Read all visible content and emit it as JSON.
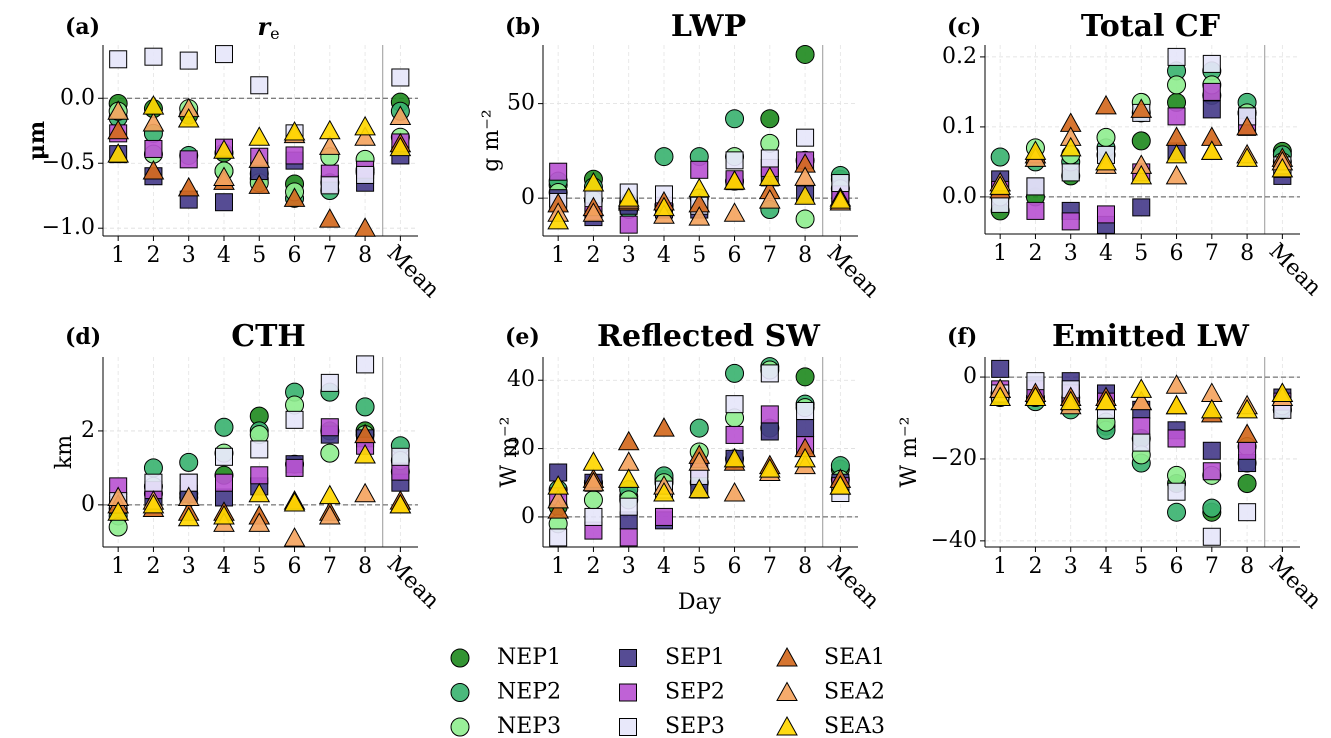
{
  "legend": [
    {
      "name": "NEP1",
      "color": "#228b22",
      "marker": "circle"
    },
    {
      "name": "NEP2",
      "color": "#3cb371",
      "marker": "circle"
    },
    {
      "name": "NEP3",
      "color": "#90ee90",
      "marker": "circle"
    },
    {
      "name": "SEP1",
      "color": "#483d8b",
      "marker": "square"
    },
    {
      "name": "SEP2",
      "color": "#ba55d3",
      "marker": "square"
    },
    {
      "name": "SEP3",
      "color": "#e6e6fa",
      "marker": "square"
    },
    {
      "name": "SEA1",
      "color": "#d2691e",
      "marker": "triangle"
    },
    {
      "name": "SEA2",
      "color": "#f4a460",
      "marker": "triangle"
    },
    {
      "name": "SEA3",
      "color": "#ffd700",
      "marker": "triangle"
    }
  ],
  "chart_data": [
    {
      "type": "scatter",
      "label": "(a)",
      "title": "r",
      "title_subscript": "e",
      "ylabel": "μm",
      "categories": [
        "1",
        "2",
        "3",
        "4",
        "5",
        "6",
        "7",
        "8",
        "Mean"
      ],
      "ylim": [
        -1.06,
        0.41
      ],
      "yticks": [
        {
          "value": -1.0,
          "label": "−1.0"
        },
        {
          "value": -0.5,
          "label": "−0.5"
        },
        {
          "value": 0.0,
          "label": "0.0"
        }
      ],
      "grid": true,
      "series": [
        {
          "values": [
            -0.04,
            -0.08,
            -0.13,
            -0.42,
            -0.62,
            -0.66,
            -0.65,
            -0.55,
            -0.03
          ]
        },
        {
          "values": [
            -0.15,
            -0.27,
            -0.44,
            -0.56,
            -0.58,
            -0.77,
            -0.71,
            -0.57,
            -0.1
          ]
        },
        {
          "values": [
            -0.1,
            -0.43,
            -0.08,
            -0.56,
            -0.65,
            -0.72,
            -0.45,
            -0.47,
            -0.3
          ]
        },
        {
          "values": [
            -0.43,
            -0.6,
            -0.78,
            -0.8,
            -0.56,
            -0.48,
            -0.66,
            -0.65,
            -0.44
          ]
        },
        {
          "values": [
            -0.27,
            -0.39,
            -0.47,
            -0.38,
            -0.45,
            -0.44,
            -0.58,
            -0.55,
            -0.34
          ]
        },
        {
          "values": [
            0.3,
            0.32,
            0.29,
            0.34,
            0.1,
            -0.27,
            -0.67,
            -0.59,
            0.16
          ]
        },
        {
          "values": [
            -0.25,
            -0.56,
            -0.69,
            -0.64,
            -0.67,
            -0.77,
            -0.93,
            -1.0,
            -0.35
          ]
        },
        {
          "values": [
            -0.1,
            -0.19,
            -0.08,
            -0.61,
            -0.47,
            -0.28,
            -0.37,
            -0.3,
            -0.14
          ]
        },
        {
          "values": [
            -0.43,
            -0.06,
            -0.16,
            -0.4,
            -0.3,
            -0.26,
            -0.25,
            -0.22,
            -0.38
          ]
        }
      ]
    },
    {
      "type": "scatter",
      "label": "(b)",
      "title": "LWP",
      "ylabel": "g m⁻²",
      "categories": [
        "1",
        "2",
        "3",
        "4",
        "5",
        "6",
        "7",
        "8",
        "Mean"
      ],
      "ylim": [
        -20,
        81
      ],
      "yticks": [
        0,
        50
      ],
      "grid": true,
      "series": [
        {
          "values": [
            7,
            10,
            -3,
            -4,
            0,
            9,
            42,
            76,
            10
          ]
        },
        {
          "values": [
            9,
            6,
            -6,
            22,
            22,
            42,
            -6,
            20,
            12
          ]
        },
        {
          "values": [
            3,
            -1,
            -2,
            -4,
            0,
            22,
            29,
            -11,
            5
          ]
        },
        {
          "values": [
            0,
            -10,
            -4,
            -6,
            -6,
            9,
            11,
            2,
            -1
          ]
        },
        {
          "values": [
            14,
            -7,
            -14,
            -4,
            15,
            10,
            16,
            20,
            2
          ]
        },
        {
          "values": [
            -2,
            0,
            3,
            2,
            -4,
            20,
            21,
            32,
            8
          ]
        },
        {
          "values": [
            -3,
            -5,
            -2,
            -2,
            -3,
            9,
            4,
            18,
            0
          ]
        },
        {
          "values": [
            -8,
            -8,
            -1,
            -9,
            -10,
            -8,
            -1,
            11,
            -2
          ]
        },
        {
          "values": [
            -12,
            8,
            0,
            -5,
            5,
            9,
            11,
            1,
            -1
          ]
        }
      ]
    },
    {
      "type": "scatter",
      "label": "(c)",
      "title": "Total CF",
      "categories": [
        "1",
        "2",
        "3",
        "4",
        "5",
        "6",
        "7",
        "8",
        "Mean"
      ],
      "ylim": [
        -0.053,
        0.217
      ],
      "yticks": [
        {
          "value": 0.0,
          "label": "0.0"
        },
        0.1,
        0.2
      ],
      "grid": true,
      "series": [
        {
          "values": [
            -0.02,
            0.0,
            0.03,
            0.06,
            0.08,
            0.135,
            0.145,
            0.12,
            0.065
          ]
        },
        {
          "values": [
            0.057,
            0.05,
            0.05,
            0.07,
            0.12,
            0.18,
            0.18,
            0.135,
            0.06
          ]
        },
        {
          "values": [
            0.0,
            0.07,
            0.06,
            0.085,
            0.135,
            0.16,
            0.16,
            0.12,
            0.05
          ]
        },
        {
          "values": [
            0.025,
            0.015,
            -0.02,
            -0.04,
            -0.015,
            0.065,
            0.125,
            0.115,
            0.03
          ]
        },
        {
          "values": [
            0.01,
            -0.02,
            -0.035,
            -0.025,
            0.035,
            0.115,
            0.15,
            0.1,
            0.04
          ]
        },
        {
          "values": [
            -0.01,
            0.015,
            0.035,
            0.06,
            0.12,
            0.2,
            0.19,
            0.115,
            0.045
          ]
        },
        {
          "values": [
            0.01,
            0.06,
            0.105,
            0.13,
            0.125,
            0.085,
            0.085,
            0.1,
            0.055
          ]
        },
        {
          "values": [
            0.02,
            0.055,
            0.085,
            0.045,
            0.045,
            0.03,
            0.065,
            0.06,
            0.05
          ]
        },
        {
          "values": [
            0.015,
            0.065,
            0.07,
            0.05,
            0.03,
            0.06,
            0.065,
            0.055,
            0.04
          ]
        }
      ]
    },
    {
      "type": "scatter",
      "label": "(d)",
      "title": "CTH",
      "ylabel": "km",
      "categories": [
        "1",
        "2",
        "3",
        "4",
        "5",
        "6",
        "7",
        "8",
        "Mean"
      ],
      "ylim": [
        -1.14,
        4.0
      ],
      "yticks": [
        0,
        2
      ],
      "grid": true,
      "series": [
        {
          "values": [
            -0.1,
            0.3,
            0.3,
            0.8,
            2.4,
            1.1,
            2.0,
            2.0,
            0.9
          ]
        },
        {
          "values": [
            -0.3,
            1.0,
            1.15,
            2.1,
            2.0,
            3.05,
            3.05,
            2.65,
            1.6
          ]
        },
        {
          "values": [
            -0.6,
            0.5,
            0.2,
            1.4,
            1.9,
            2.7,
            1.4,
            1.9,
            1.2
          ]
        },
        {
          "values": [
            0.0,
            0.2,
            0.3,
            0.2,
            0.5,
            1.1,
            1.9,
            1.8,
            0.6
          ]
        },
        {
          "values": [
            0.5,
            0.4,
            0.6,
            0.6,
            0.8,
            1.0,
            2.1,
            1.6,
            0.9
          ]
        },
        {
          "values": [
            0.1,
            0.6,
            0.6,
            1.3,
            1.5,
            2.3,
            3.3,
            3.8,
            1.3
          ]
        },
        {
          "values": [
            0.0,
            -0.1,
            -0.2,
            -0.2,
            -0.3,
            0.1,
            -0.2,
            1.9,
            0.1
          ]
        },
        {
          "values": [
            0.2,
            0.1,
            0.2,
            -0.5,
            -0.5,
            -0.9,
            -0.3,
            0.3,
            0.0
          ]
        },
        {
          "values": [
            -0.2,
            0.0,
            -0.35,
            -0.3,
            0.3,
            0.05,
            0.25,
            1.35,
            0.0
          ]
        }
      ]
    },
    {
      "type": "scatter",
      "label": "(e)",
      "title": "Reflected SW",
      "ylabel": "W m⁻²",
      "xlabel": "Day",
      "categories": [
        "1",
        "2",
        "3",
        "4",
        "5",
        "6",
        "7",
        "8",
        "Mean"
      ],
      "ylim": [
        -8.8,
        46.8
      ],
      "yticks": [
        0,
        20,
        40
      ],
      "grid": true,
      "series": [
        {
          "values": [
            3,
            10,
            6,
            11,
            10,
            17,
            26,
            41,
            14
          ]
        },
        {
          "values": [
            8,
            10,
            8,
            12,
            26,
            42,
            44,
            33,
            15
          ]
        },
        {
          "values": [
            -2,
            5,
            5,
            10,
            19,
            29,
            43,
            32,
            11
          ]
        },
        {
          "values": [
            13,
            10,
            -1,
            -1,
            8,
            17,
            25,
            26,
            10
          ]
        },
        {
          "values": [
            6,
            -4,
            -6,
            0,
            14,
            24,
            30,
            21,
            9
          ]
        },
        {
          "values": [
            -6,
            0,
            3,
            8,
            12,
            33,
            42,
            31,
            7
          ]
        },
        {
          "values": [
            2,
            11,
            22,
            26,
            18,
            16,
            15,
            20,
            11
          ]
        },
        {
          "values": [
            5,
            10,
            16,
            9,
            16,
            7,
            13,
            15,
            9
          ]
        },
        {
          "values": [
            9,
            16,
            11,
            7,
            8,
            17,
            14,
            17,
            9
          ]
        }
      ]
    },
    {
      "type": "scatter",
      "label": "(f)",
      "title": "Emitted LW",
      "ylabel": "W m⁻²",
      "categories": [
        "1",
        "2",
        "3",
        "4",
        "5",
        "6",
        "7",
        "8",
        "Mean"
      ],
      "ylim": [
        -41.5,
        4.9
      ],
      "yticks": [
        {
          "value": -40,
          "label": "−40"
        },
        {
          "value": -20,
          "label": "−20"
        },
        0
      ],
      "grid": true,
      "series": [
        {
          "values": [
            -5,
            -5,
            -6,
            -12,
            -15,
            -26,
            -33,
            -26,
            -8
          ]
        },
        {
          "values": [
            -4,
            -6,
            -8,
            -13,
            -21,
            -33,
            -32,
            -21,
            -8
          ]
        },
        {
          "values": [
            -4,
            -5,
            -5,
            -11,
            -19,
            -24,
            -24,
            -17,
            -7
          ]
        },
        {
          "values": [
            2,
            -2,
            -1,
            -4,
            -8,
            -13,
            -18,
            -21,
            -5
          ]
        },
        {
          "values": [
            -3,
            -3,
            -4,
            -6,
            -12,
            -15,
            -23,
            -18,
            -6
          ]
        },
        {
          "values": [
            -4,
            -1,
            -3,
            -8,
            -16,
            -28,
            -39,
            -33,
            -8
          ]
        },
        {
          "values": [
            -3,
            -4,
            -5,
            -5,
            -6,
            -7,
            -9,
            -14,
            -4
          ]
        },
        {
          "values": [
            -3,
            -5,
            -7,
            -6,
            -6,
            -2,
            -4,
            -7,
            -5
          ]
        },
        {
          "values": [
            -5,
            -5,
            -6,
            -6,
            -3,
            -7,
            -8,
            -8,
            -4
          ]
        }
      ]
    }
  ]
}
